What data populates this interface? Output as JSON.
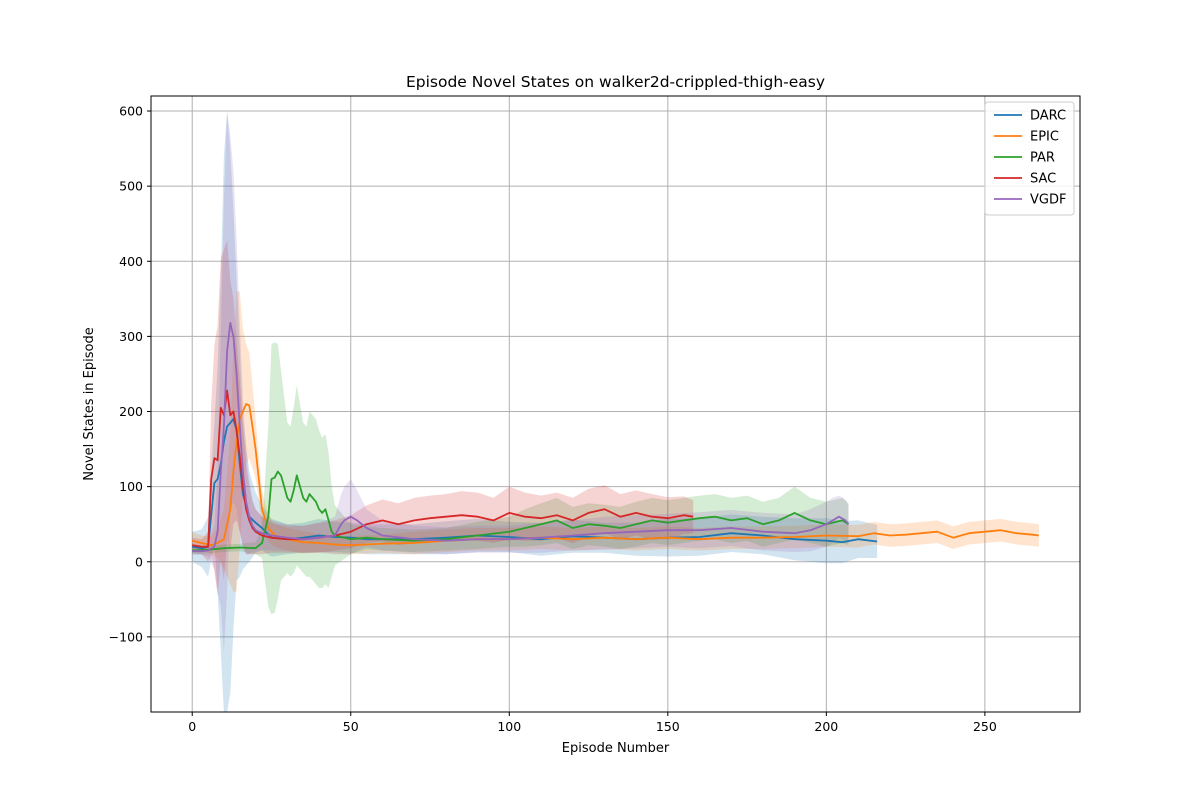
{
  "chart_data": {
    "type": "line",
    "title": "Episode Novel States on walker2d-crippled-thigh-easy",
    "xlabel": "Episode Number",
    "ylabel": "Novel States in Episode",
    "xlim": [
      -13,
      280
    ],
    "ylim": [
      -200,
      620
    ],
    "xticks": [
      0,
      50,
      100,
      150,
      200,
      250
    ],
    "yticks": [
      -100,
      0,
      100,
      200,
      300,
      400,
      500,
      600
    ],
    "grid": true,
    "legend_position": "top-right",
    "series": [
      {
        "name": "DARC",
        "color": "#1f77b4",
        "x": [
          0,
          3,
          5,
          7,
          8,
          9,
          10,
          11,
          12,
          13,
          14,
          15,
          16,
          18,
          20,
          22,
          25,
          30,
          35,
          40,
          45,
          50,
          55,
          60,
          70,
          80,
          90,
          100,
          110,
          120,
          130,
          140,
          150,
          160,
          170,
          180,
          190,
          200,
          205,
          210,
          216
        ],
        "y": [
          20,
          18,
          20,
          105,
          110,
          130,
          160,
          180,
          185,
          190,
          175,
          130,
          90,
          60,
          52,
          45,
          32,
          30,
          32,
          35,
          33,
          32,
          30,
          30,
          30,
          32,
          35,
          33,
          30,
          34,
          32,
          30,
          32,
          33,
          38,
          35,
          30,
          28,
          26,
          30,
          27
        ],
        "band": [
          20,
          25,
          40,
          80,
          150,
          250,
          380,
          420,
          360,
          280,
          200,
          150,
          100,
          60,
          40,
          30,
          25,
          20,
          20,
          22,
          20,
          20,
          20,
          20,
          20,
          22,
          22,
          20,
          22,
          22,
          20,
          22,
          25,
          25,
          25,
          25,
          28,
          30,
          28,
          25,
          22
        ]
      },
      {
        "name": "EPIC",
        "color": "#ff7f0e",
        "x": [
          0,
          2,
          4,
          6,
          8,
          10,
          12,
          13,
          14,
          15,
          16,
          17,
          18,
          19,
          20,
          21,
          22,
          24,
          26,
          30,
          35,
          40,
          45,
          50,
          60,
          70,
          80,
          90,
          100,
          110,
          120,
          130,
          140,
          150,
          160,
          170,
          180,
          190,
          200,
          210,
          215,
          220,
          225,
          230,
          235,
          240,
          245,
          250,
          255,
          260,
          265,
          267
        ],
        "y": [
          28,
          26,
          24,
          22,
          25,
          30,
          70,
          120,
          160,
          190,
          200,
          210,
          208,
          180,
          150,
          110,
          70,
          45,
          35,
          30,
          26,
          25,
          23,
          22,
          24,
          25,
          28,
          30,
          30,
          32,
          30,
          32,
          30,
          32,
          30,
          32,
          32,
          33,
          35,
          34,
          38,
          35,
          36,
          38,
          40,
          32,
          38,
          40,
          42,
          38,
          36,
          35
        ],
        "band": [
          12,
          10,
          10,
          12,
          20,
          40,
          100,
          160,
          200,
          170,
          110,
          80,
          70,
          55,
          40,
          30,
          25,
          18,
          15,
          15,
          15,
          12,
          12,
          12,
          12,
          15,
          15,
          15,
          15,
          15,
          15,
          15,
          15,
          15,
          15,
          15,
          15,
          15,
          15,
          15,
          15,
          15,
          15,
          15,
          15,
          15,
          15,
          15,
          15,
          15,
          15,
          15
        ]
      },
      {
        "name": "PAR",
        "color": "#2ca02c",
        "x": [
          0,
          5,
          10,
          15,
          20,
          22,
          24,
          25,
          26,
          27,
          28,
          29,
          30,
          31,
          32,
          33,
          34,
          35,
          36,
          37,
          38,
          39,
          40,
          41,
          42,
          43,
          44,
          45,
          50,
          55,
          60,
          70,
          80,
          90,
          100,
          105,
          110,
          115,
          120,
          125,
          130,
          135,
          140,
          145,
          150,
          155,
          160,
          165,
          170,
          175,
          180,
          185,
          190,
          195,
          200,
          205,
          207
        ],
        "y": [
          15,
          16,
          18,
          19,
          18,
          25,
          60,
          110,
          112,
          120,
          115,
          100,
          85,
          80,
          95,
          115,
          100,
          85,
          80,
          90,
          85,
          80,
          70,
          65,
          70,
          55,
          40,
          35,
          30,
          32,
          30,
          28,
          30,
          35,
          40,
          45,
          50,
          55,
          45,
          50,
          48,
          45,
          50,
          55,
          52,
          55,
          58,
          60,
          55,
          58,
          50,
          55,
          65,
          55,
          50,
          55,
          50
        ],
        "band": [
          5,
          5,
          5,
          5,
          8,
          20,
          120,
          180,
          180,
          170,
          140,
          120,
          100,
          100,
          110,
          120,
          110,
          100,
          100,
          110,
          110,
          110,
          105,
          100,
          100,
          90,
          60,
          40,
          20,
          15,
          15,
          15,
          15,
          18,
          20,
          25,
          28,
          30,
          28,
          28,
          28,
          28,
          30,
          30,
          30,
          30,
          30,
          30,
          30,
          30,
          30,
          30,
          35,
          30,
          30,
          30,
          28
        ]
      },
      {
        "name": "SAC",
        "color": "#d62728",
        "x": [
          0,
          3,
          5,
          6,
          7,
          8,
          9,
          10,
          11,
          12,
          13,
          14,
          15,
          16,
          17,
          18,
          19,
          20,
          22,
          25,
          30,
          35,
          40,
          45,
          50,
          55,
          60,
          65,
          70,
          75,
          80,
          85,
          90,
          95,
          100,
          105,
          110,
          115,
          120,
          125,
          130,
          135,
          140,
          145,
          150,
          155,
          158
        ],
        "y": [
          22,
          20,
          20,
          110,
          138,
          135,
          205,
          195,
          228,
          195,
          200,
          175,
          140,
          100,
          70,
          55,
          45,
          40,
          35,
          32,
          30,
          30,
          32,
          35,
          40,
          50,
          55,
          50,
          55,
          58,
          60,
          62,
          60,
          55,
          65,
          60,
          58,
          62,
          55,
          65,
          70,
          60,
          65,
          60,
          58,
          62,
          60
        ],
        "band": [
          10,
          10,
          20,
          100,
          150,
          180,
          200,
          220,
          200,
          180,
          150,
          120,
          100,
          80,
          60,
          45,
          35,
          30,
          25,
          20,
          18,
          18,
          20,
          20,
          22,
          25,
          28,
          28,
          30,
          30,
          30,
          32,
          32,
          30,
          35,
          32,
          30,
          30,
          30,
          32,
          32,
          30,
          30,
          30,
          28,
          25,
          22
        ]
      },
      {
        "name": "VGDF",
        "color": "#9467bd",
        "x": [
          0,
          3,
          5,
          7,
          8,
          9,
          10,
          11,
          12,
          13,
          14,
          15,
          16,
          17,
          18,
          19,
          20,
          22,
          25,
          30,
          35,
          40,
          45,
          47,
          48,
          50,
          52,
          55,
          60,
          70,
          80,
          90,
          100,
          110,
          120,
          130,
          140,
          150,
          160,
          170,
          180,
          190,
          195,
          200,
          202,
          204,
          206,
          207
        ],
        "y": [
          14,
          14,
          15,
          20,
          40,
          120,
          180,
          280,
          318,
          300,
          250,
          180,
          120,
          80,
          60,
          48,
          42,
          38,
          35,
          32,
          30,
          32,
          35,
          50,
          55,
          60,
          55,
          45,
          35,
          30,
          28,
          30,
          30,
          32,
          35,
          38,
          40,
          42,
          42,
          45,
          40,
          38,
          42,
          50,
          55,
          60,
          55,
          50
        ],
        "band": [
          5,
          5,
          8,
          30,
          80,
          180,
          300,
          320,
          250,
          220,
          180,
          140,
          100,
          70,
          50,
          35,
          28,
          22,
          20,
          18,
          18,
          20,
          25,
          40,
          45,
          50,
          40,
          25,
          20,
          18,
          18,
          18,
          18,
          20,
          20,
          22,
          22,
          22,
          24,
          24,
          25,
          25,
          28,
          30,
          30,
          28,
          28,
          25
        ]
      }
    ]
  }
}
